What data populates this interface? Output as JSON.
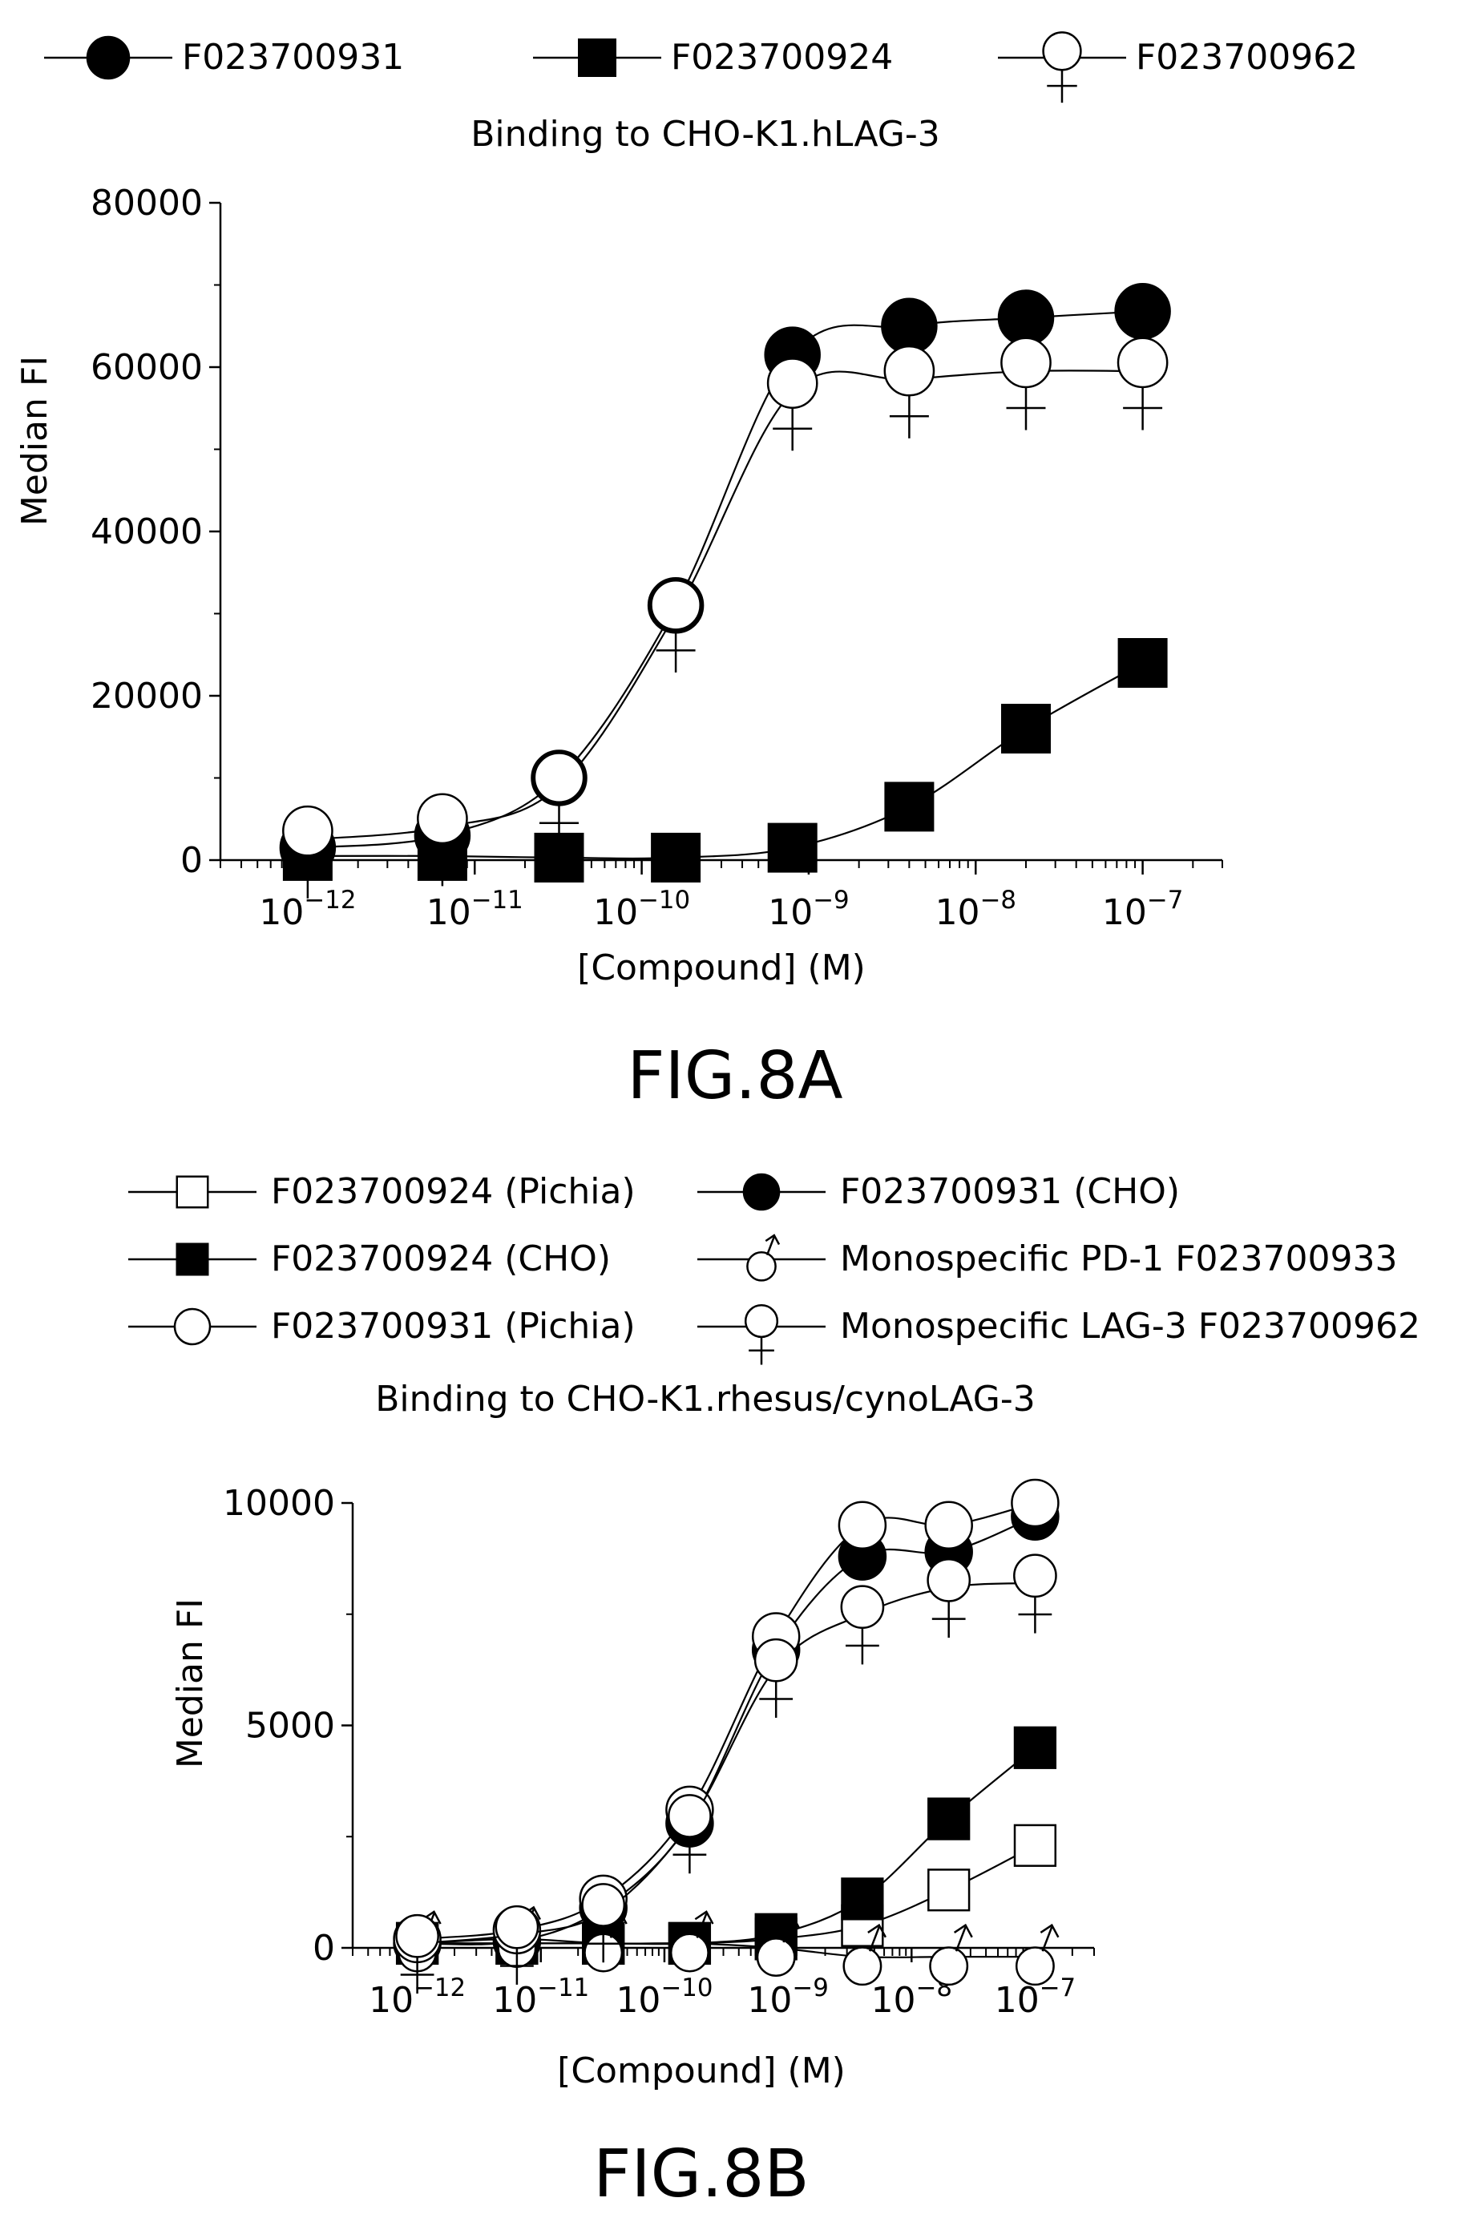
{
  "figures": [
    {
      "fig_label": "FIG.8A",
      "legend": [
        {
          "name": "F023700931",
          "marker": "filled-circle"
        },
        {
          "name": "F023700924",
          "marker": "filled-square"
        },
        {
          "name": "F023700962",
          "marker": "venus"
        }
      ]
    },
    {
      "fig_label": "FIG.8B",
      "legend": [
        {
          "name": "F023700924 (Pichia)",
          "marker": "open-square"
        },
        {
          "name": "F023700931 (CHO)",
          "marker": "filled-circle"
        },
        {
          "name": "F023700924 (CHO)",
          "marker": "filled-square"
        },
        {
          "name": "Monospecific PD-1 F023700933",
          "marker": "mars"
        },
        {
          "name": "F023700931 (Pichia)",
          "marker": "open-circle"
        },
        {
          "name": "Monospecific LAG-3 F023700962",
          "marker": "venus"
        }
      ]
    }
  ],
  "chart_data": [
    {
      "type": "scatter",
      "title": "Binding to CHO-K1.hLAG-3",
      "xlabel": "[Compound] (M)",
      "ylabel": "Median FI",
      "x_scale": "log",
      "xlim": [
        3e-13,
        3e-07
      ],
      "ylim": [
        0,
        80000
      ],
      "yticks": [
        "0",
        "20000",
        "40000",
        "60000",
        "80000"
      ],
      "xticks": [
        {
          "base": "10",
          "exp": "−12",
          "value": 1e-12
        },
        {
          "base": "10",
          "exp": "−11",
          "value": 1e-11
        },
        {
          "base": "10",
          "exp": "−10",
          "value": 1e-10
        },
        {
          "base": "10",
          "exp": "−9",
          "value": 1e-09
        },
        {
          "base": "10",
          "exp": "−8",
          "value": 1e-08
        },
        {
          "base": "10",
          "exp": "−7",
          "value": 1e-07
        }
      ],
      "legend_position": "top",
      "x": [
        1e-12,
        6.4e-12,
        3.2e-11,
        1.6e-10,
        8e-10,
        4e-09,
        2e-08,
        1e-07
      ],
      "series": [
        {
          "name": "F023700931",
          "marker": "filled-circle",
          "values": [
            1500,
            3000,
            10000,
            31000,
            61500,
            65000,
            66000,
            66800
          ]
        },
        {
          "name": "F023700924",
          "marker": "filled-square",
          "values": [
            500,
            500,
            300,
            300,
            1500,
            6500,
            16000,
            24000
          ]
        },
        {
          "name": "F023700962",
          "marker": "venus",
          "values": [
            2500,
            4000,
            9000,
            30000,
            57000,
            58500,
            59500,
            59500
          ]
        }
      ]
    },
    {
      "type": "scatter",
      "title": "Binding to CHO-K1.rhesus/cynoLAG-3",
      "xlabel": "[Compound] (M)",
      "ylabel": "Median FI",
      "x_scale": "log",
      "xlim": [
        3e-13,
        3e-07
      ],
      "ylim": [
        0,
        10000
      ],
      "yticks": [
        "0",
        "5000",
        "10000"
      ],
      "xticks": [
        {
          "base": "10",
          "exp": "−12",
          "value": 1e-12
        },
        {
          "base": "10",
          "exp": "−11",
          "value": 1e-11
        },
        {
          "base": "10",
          "exp": "−10",
          "value": 1e-10
        },
        {
          "base": "10",
          "exp": "−9",
          "value": 1e-09
        },
        {
          "base": "10",
          "exp": "−8",
          "value": 1e-08
        },
        {
          "base": "10",
          "exp": "−7",
          "value": 1e-07
        }
      ],
      "legend_position": "top",
      "x": [
        1e-12,
        6.4e-12,
        3.2e-11,
        1.6e-10,
        8e-10,
        4e-09,
        2e-08,
        1e-07
      ],
      "series": [
        {
          "name": "F023700924 (Pichia)",
          "marker": "open-square",
          "values": [
            100,
            100,
            100,
            100,
            200,
            500,
            1300,
            2300
          ]
        },
        {
          "name": "F023700931 (CHO)",
          "marker": "filled-circle",
          "values": [
            100,
            150,
            900,
            2800,
            6700,
            8800,
            8900,
            9700
          ]
        },
        {
          "name": "F023700924 (CHO)",
          "marker": "filled-square",
          "values": [
            100,
            100,
            100,
            100,
            300,
            1100,
            2900,
            4500
          ]
        },
        {
          "name": "Monospecific PD-1 F023700933",
          "marker": "mars",
          "values": [
            100,
            200,
            100,
            100,
            0,
            -200,
            -200,
            -200
          ]
        },
        {
          "name": "F023700931 (Pichia)",
          "marker": "open-circle",
          "values": [
            200,
            400,
            1100,
            3100,
            7000,
            9500,
            9500,
            10000
          ]
        },
        {
          "name": "Monospecific LAG-3 F023700962",
          "marker": "venus",
          "values": [
            100,
            300,
            800,
            2800,
            6300,
            7500,
            8100,
            8200
          ]
        }
      ]
    }
  ]
}
